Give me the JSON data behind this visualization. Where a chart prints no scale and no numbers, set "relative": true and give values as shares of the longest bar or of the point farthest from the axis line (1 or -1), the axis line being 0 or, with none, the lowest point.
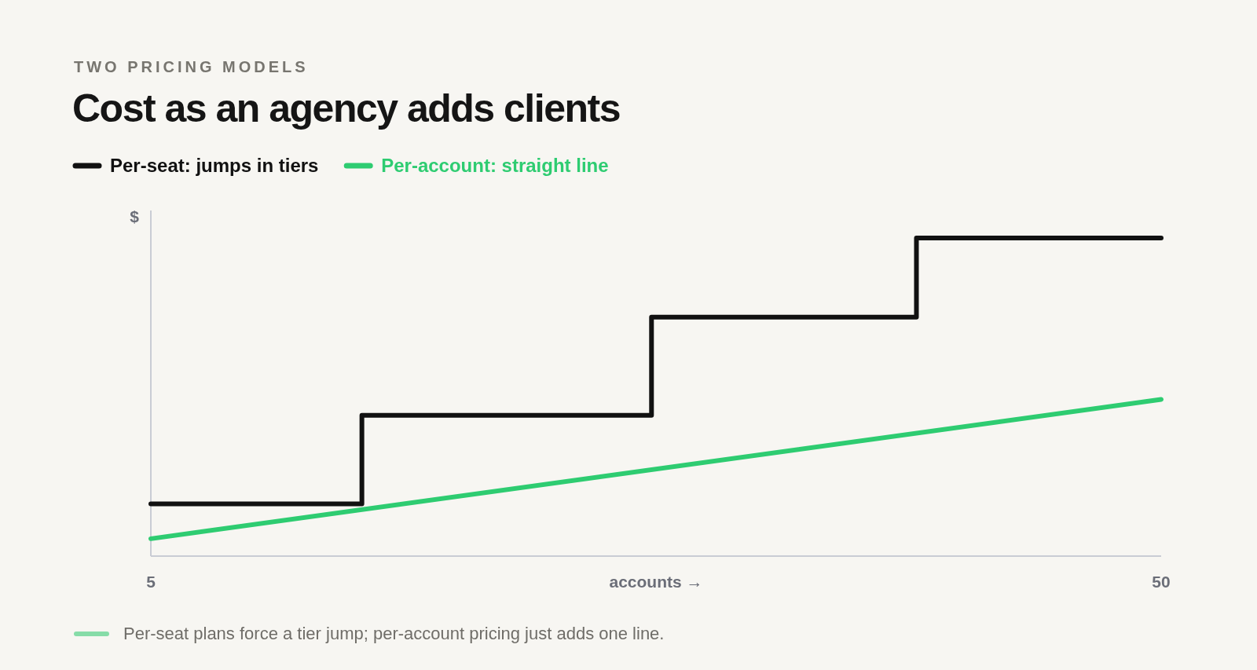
{
  "chart_data": {
    "type": "line",
    "subtitle": "TWO PRICING MODELS",
    "title": "Cost as an agency adds clients",
    "ylabel": "$",
    "xlabel": "accounts →",
    "relative": true,
    "xlim": [
      5,
      50
    ],
    "xticks": [
      5,
      50
    ],
    "legend": "top left",
    "marker": "none",
    "line_style": "solid",
    "series": [
      {
        "name": "Per-seat: jumps in tiers",
        "type": "step",
        "color": "#111111",
        "x": [
          5,
          14.4,
          27.3,
          39.1,
          50
        ],
        "values": [
          0.16,
          0.44,
          0.75,
          1,
          1
        ]
      },
      {
        "name": "Per-account: straight line",
        "color": "#2ecc71",
        "x": [
          5,
          50
        ],
        "values": [
          0.05,
          0.49
        ]
      }
    ],
    "annotations": [
      "Per-seat plans force a tier jump; per-account pricing just adds one line."
    ]
  }
}
